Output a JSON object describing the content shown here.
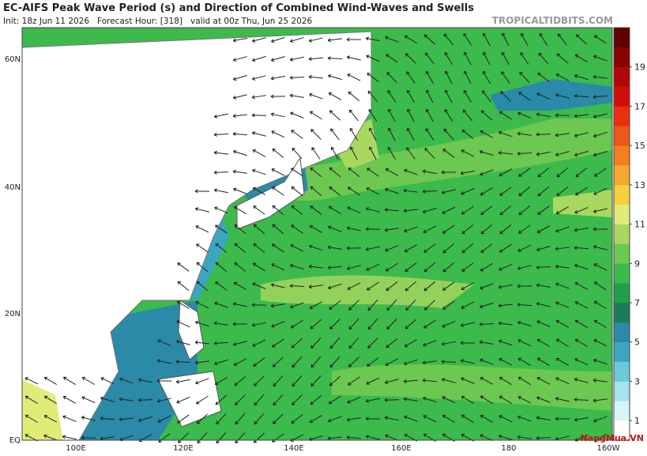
{
  "header": {
    "title": "EC-AIFS Peak Wave Period (s) and Direction of Combined Wind-Waves and Swells",
    "subtitle": "Init: 18z Jun 11 2026   Forecast Hour: [318]   valid at 00z Thu, Jun 25 2026",
    "site": "TROPICALTIDBITS.COM"
  },
  "map": {
    "lat_labels": [
      "60N",
      "40N",
      "20N",
      "EQ"
    ],
    "lon_labels": [
      "100E",
      "120E",
      "140E",
      "160E",
      "180",
      "160W"
    ]
  },
  "colorbar": {
    "range": [
      0,
      21
    ],
    "ticks": [
      1,
      3,
      5,
      7,
      9,
      11,
      13,
      15,
      17,
      19
    ],
    "colors": [
      "#ffffff",
      "#d8f4f8",
      "#a8e2ec",
      "#6ccad8",
      "#3aa6c0",
      "#2a8aa8",
      "#1f7a5a",
      "#1fa048",
      "#3cba4c",
      "#6cc850",
      "#a8d860",
      "#e0ec78",
      "#f4d040",
      "#f4a830",
      "#f08020",
      "#ec5818",
      "#e83010",
      "#d01008",
      "#b00808",
      "#880404",
      "#600000"
    ]
  },
  "watermark": "NangMua.VN"
}
